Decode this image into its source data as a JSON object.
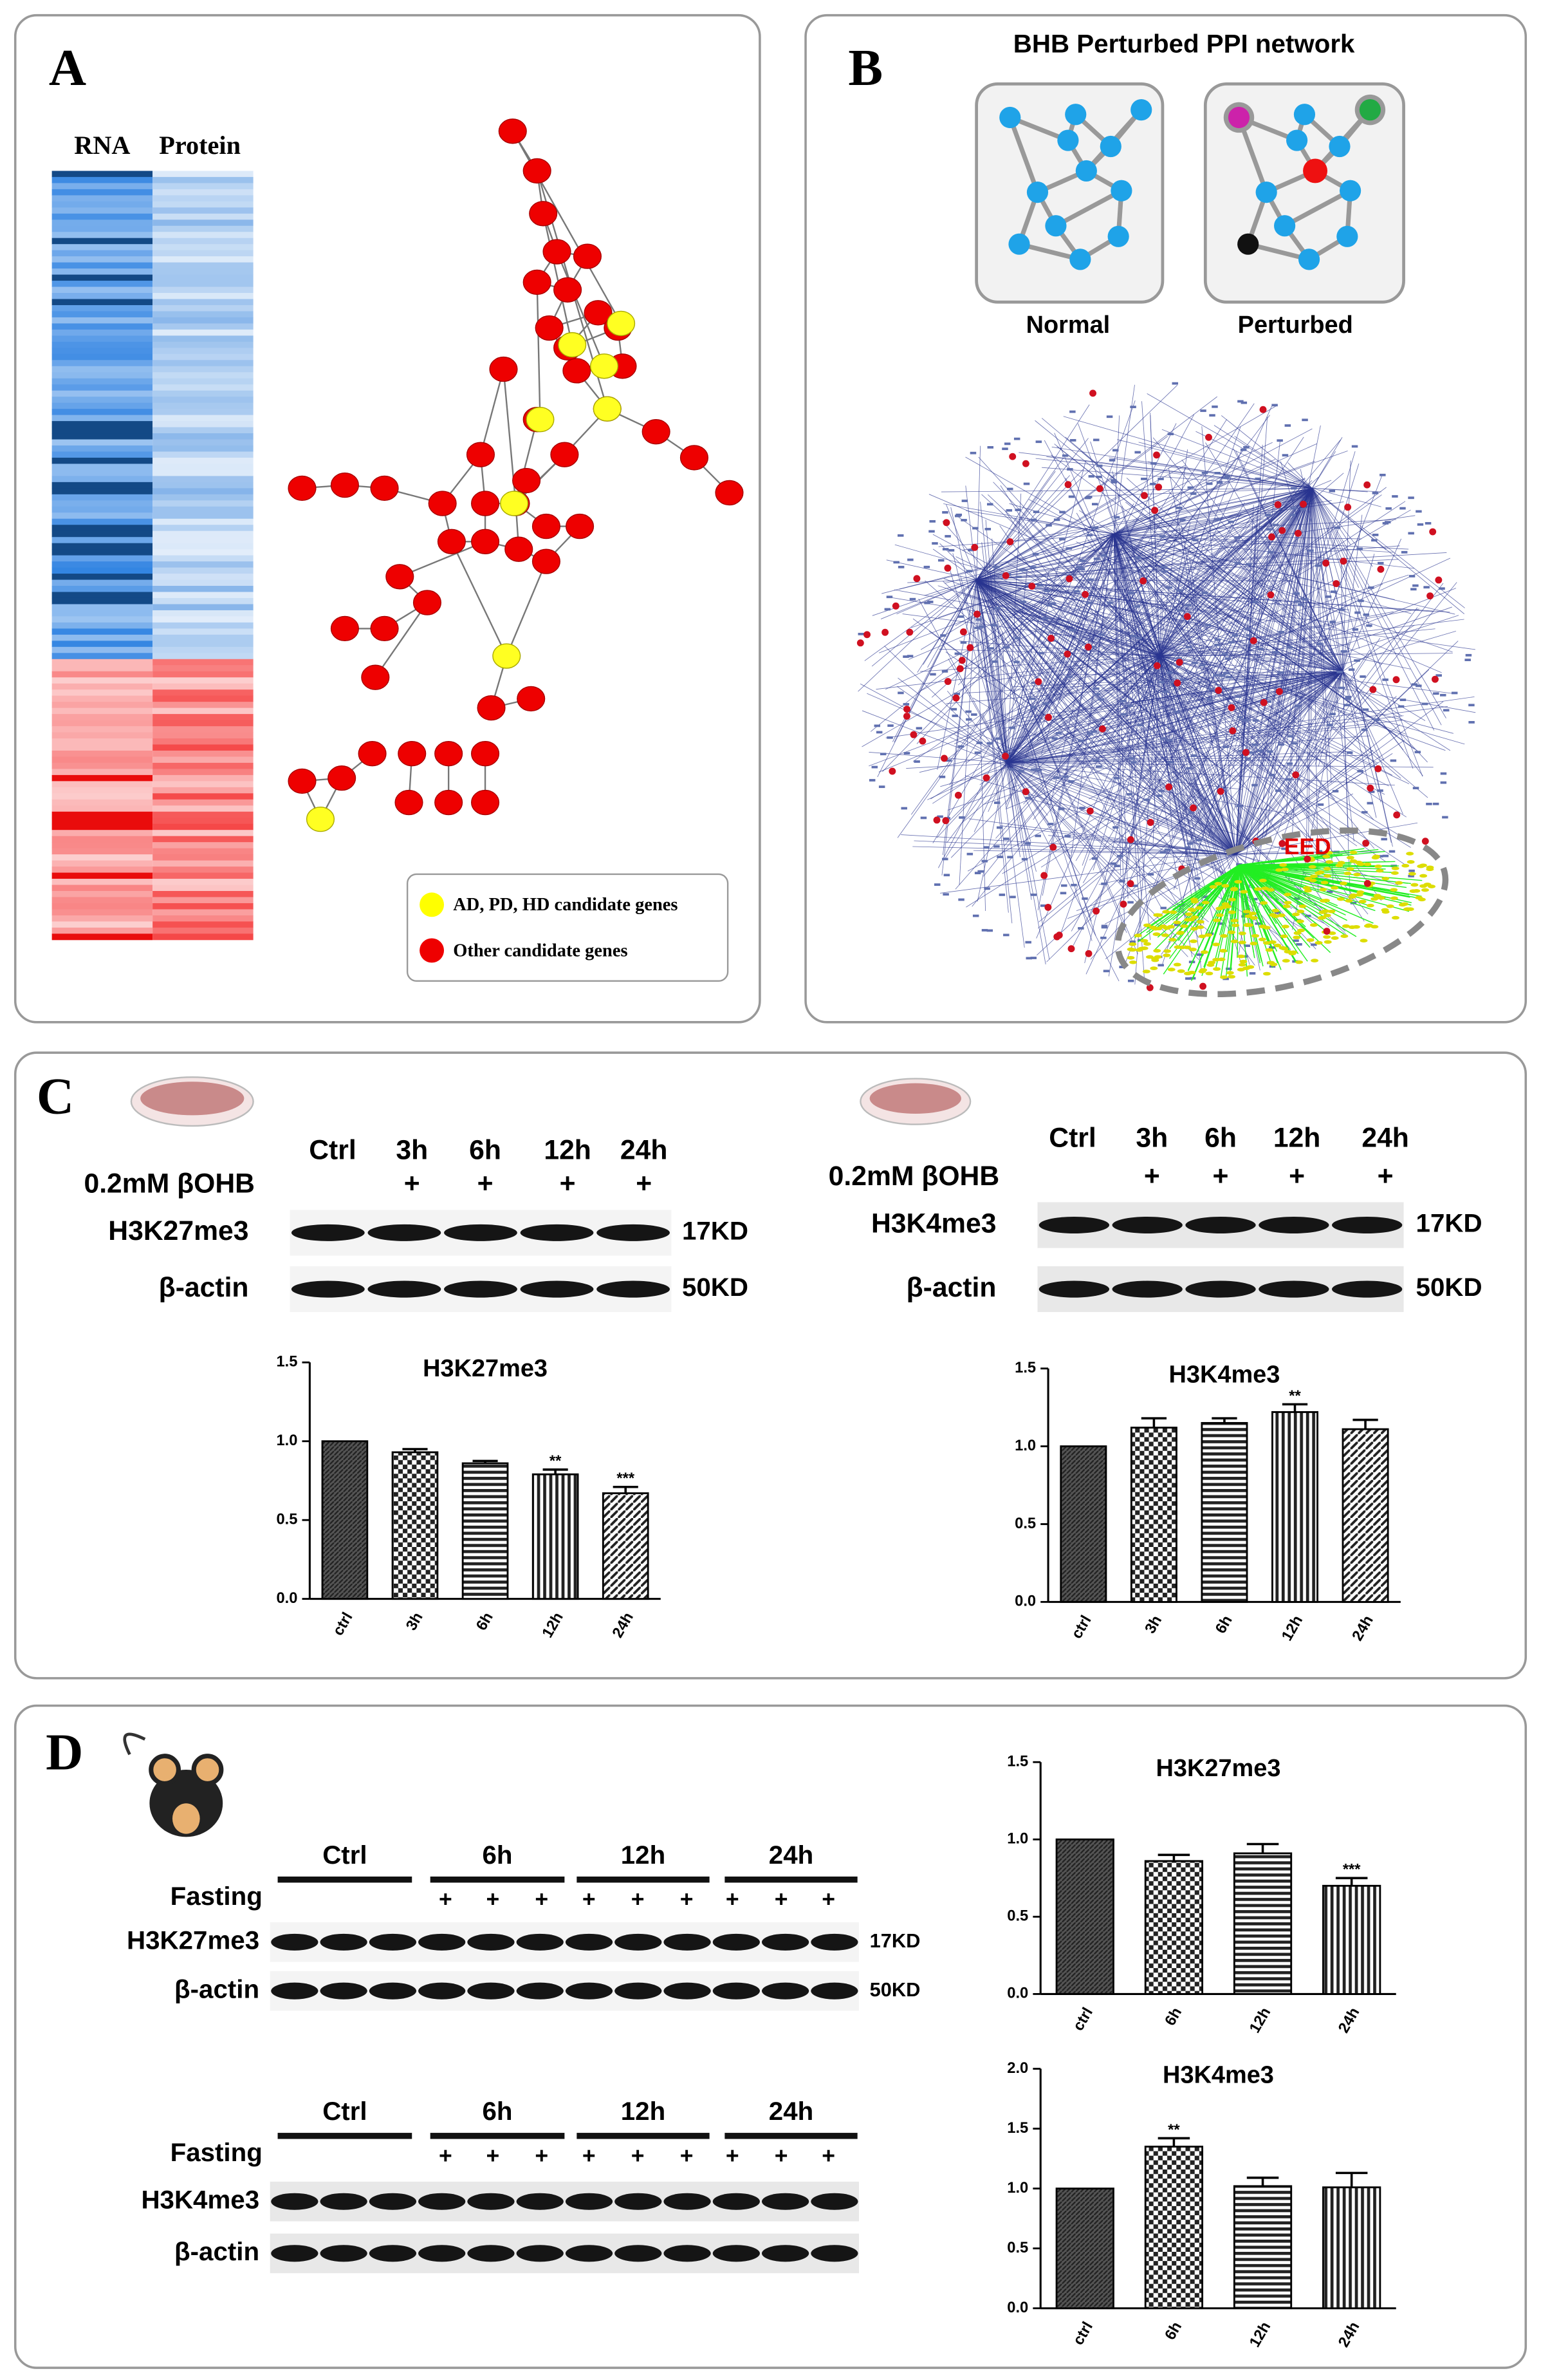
{
  "panels": {
    "A": {
      "label": "A",
      "heatmap_headers": [
        "RNA",
        "Protein"
      ],
      "legend": [
        "AD, PD, HD candidate genes",
        "Other candidate genes"
      ]
    },
    "B": {
      "label": "B",
      "title": "BHB Perturbed PPI network",
      "insets": [
        "Normal",
        "Perturbed"
      ],
      "highlight": "EED"
    },
    "C": {
      "label": "C",
      "blots": [
        {
          "lanes": [
            "Ctrl",
            "3h",
            "6h",
            "12h",
            "24h"
          ],
          "treatment": "0.2mM βOHB",
          "marks": [
            "+",
            "+",
            "+",
            "+"
          ],
          "rows": [
            {
              "name": "H3K27me3",
              "size": "17KD"
            },
            {
              "name": "β-actin",
              "size": "50KD"
            }
          ]
        },
        {
          "lanes": [
            "Ctrl",
            "3h",
            "6h",
            "12h",
            "24h"
          ],
          "treatment": "0.2mM βOHB",
          "marks": [
            "+",
            "+",
            "+",
            "+"
          ],
          "rows": [
            {
              "name": "H3K4me3",
              "size": "17KD"
            },
            {
              "name": "β-actin",
              "size": "50KD"
            }
          ]
        }
      ],
      "charts": [
        {
          "type": "bar",
          "title": "H3K27me3",
          "categories": [
            "ctrl",
            "3h",
            "6h",
            "12h",
            "24h"
          ],
          "values": [
            1.0,
            0.93,
            0.86,
            0.79,
            0.67
          ],
          "errors": [
            0,
            0.02,
            0.015,
            0.03,
            0.04
          ],
          "annotations": [
            null,
            null,
            null,
            "**",
            "***"
          ],
          "ylim": [
            0,
            1.5
          ],
          "yticks": [
            {
              "value": 0,
              "label": "0.0"
            },
            {
              "value": 0.5,
              "label": "0.5"
            },
            {
              "value": 1,
              "label": "1.0"
            },
            {
              "value": 1.5,
              "label": "1.5"
            }
          ]
        },
        {
          "type": "bar",
          "title": "H3K4me3",
          "categories": [
            "ctrl",
            "3h",
            "6h",
            "12h",
            "24h"
          ],
          "values": [
            1.0,
            1.12,
            1.15,
            1.22,
            1.11
          ],
          "errors": [
            0,
            0.06,
            0.03,
            0.05,
            0.06
          ],
          "annotations": [
            null,
            null,
            null,
            "**",
            null
          ],
          "ylim": [
            0,
            1.5
          ],
          "yticks": [
            {
              "value": 0,
              "label": "0.0"
            },
            {
              "value": 0.5,
              "label": "0.5"
            },
            {
              "value": 1,
              "label": "1.0"
            },
            {
              "value": 1.5,
              "label": "1.5"
            }
          ]
        }
      ]
    },
    "D": {
      "label": "D",
      "blots": [
        {
          "groups": [
            "Ctrl",
            "6h",
            "12h",
            "24h"
          ],
          "treatment": "Fasting",
          "marks": [
            "+",
            "+",
            "+",
            "+",
            "+",
            "+",
            "+",
            "+",
            "+"
          ],
          "rows": [
            {
              "name": "H3K27me3",
              "size": "17KD"
            },
            {
              "name": "β-actin",
              "size": "50KD"
            }
          ]
        },
        {
          "groups": [
            "Ctrl",
            "6h",
            "12h",
            "24h"
          ],
          "treatment": "Fasting",
          "marks": [
            "+",
            "+",
            "+",
            "+",
            "+",
            "+",
            "+",
            "+",
            "+"
          ],
          "rows": [
            {
              "name": "H3K4me3"
            },
            {
              "name": "β-actin"
            }
          ]
        }
      ],
      "charts": [
        {
          "type": "bar",
          "title": "H3K27me3",
          "categories": [
            "ctrl",
            "6h",
            "12h",
            "24h"
          ],
          "values": [
            1.0,
            0.86,
            0.91,
            0.7
          ],
          "errors": [
            0,
            0.04,
            0.06,
            0.05
          ],
          "annotations": [
            null,
            null,
            null,
            "***"
          ],
          "ylim": [
            0,
            1.5
          ],
          "yticks": [
            {
              "value": 0,
              "label": "0.0"
            },
            {
              "value": 0.5,
              "label": "0.5"
            },
            {
              "value": 1,
              "label": "1.0"
            },
            {
              "value": 1.5,
              "label": "1.5"
            }
          ]
        },
        {
          "type": "bar",
          "title": "H3K4me3",
          "categories": [
            "ctrl",
            "6h",
            "12h",
            "24h"
          ],
          "values": [
            1.0,
            1.35,
            1.02,
            1.01
          ],
          "errors": [
            0,
            0.07,
            0.07,
            0.12
          ],
          "annotations": [
            null,
            "**",
            null,
            null
          ],
          "ylim": [
            0,
            2
          ],
          "yticks": [
            {
              "value": 0,
              "label": "0.0"
            },
            {
              "value": 0.5,
              "label": "0.5"
            },
            {
              "value": 1,
              "label": "1.0"
            },
            {
              "value": 1.5,
              "label": "1.5"
            },
            {
              "value": 2,
              "label": "2.0"
            }
          ]
        }
      ]
    }
  }
}
